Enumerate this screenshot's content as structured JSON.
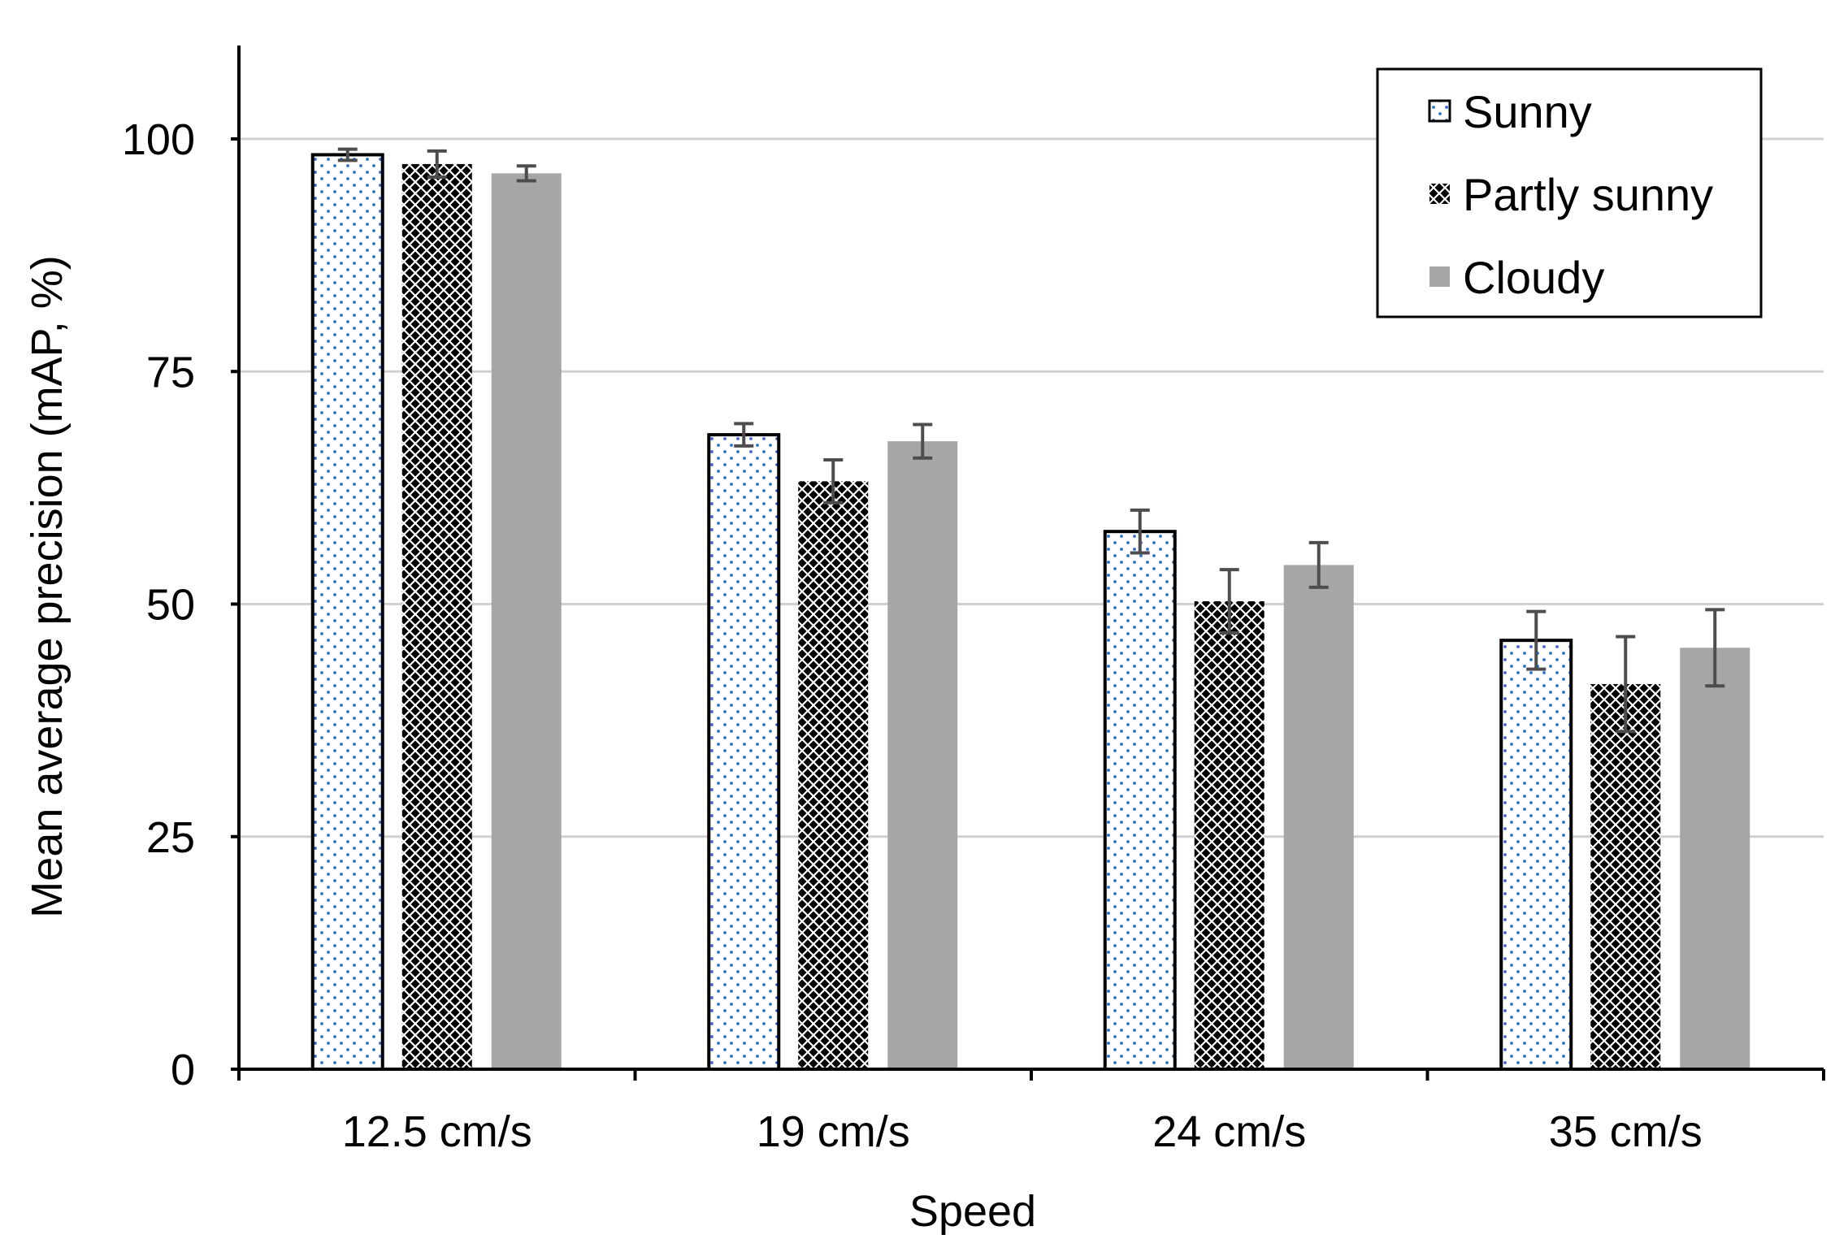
{
  "chart_data": {
    "type": "bar",
    "title": "",
    "xlabel": "Speed",
    "ylabel": "Mean average precision (mAP,  %)",
    "categories": [
      "12.5 cm/s",
      "19 cm/s",
      "24 cm/s",
      "35 cm/s"
    ],
    "ylim": [
      0,
      110
    ],
    "yticks": [
      0,
      25,
      50,
      75,
      100
    ],
    "grid": true,
    "legend_position": "top-right",
    "series": [
      {
        "name": "Sunny",
        "pattern": "dots",
        "color": "#2a6fd6",
        "values": [
          98.3,
          68.2,
          57.8,
          46.1
        ],
        "errors": [
          0.6,
          1.2,
          2.3,
          3.1
        ]
      },
      {
        "name": "Partly sunny",
        "pattern": "crosshatch",
        "color": "#000000",
        "values": [
          97.3,
          63.2,
          50.3,
          41.4
        ],
        "errors": [
          1.4,
          2.3,
          3.4,
          5.1
        ]
      },
      {
        "name": "Cloudy",
        "pattern": "solid",
        "color": "#a6a6a6",
        "values": [
          96.3,
          67.5,
          54.2,
          45.3
        ],
        "errors": [
          0.8,
          1.8,
          2.4,
          4.1
        ]
      }
    ]
  }
}
